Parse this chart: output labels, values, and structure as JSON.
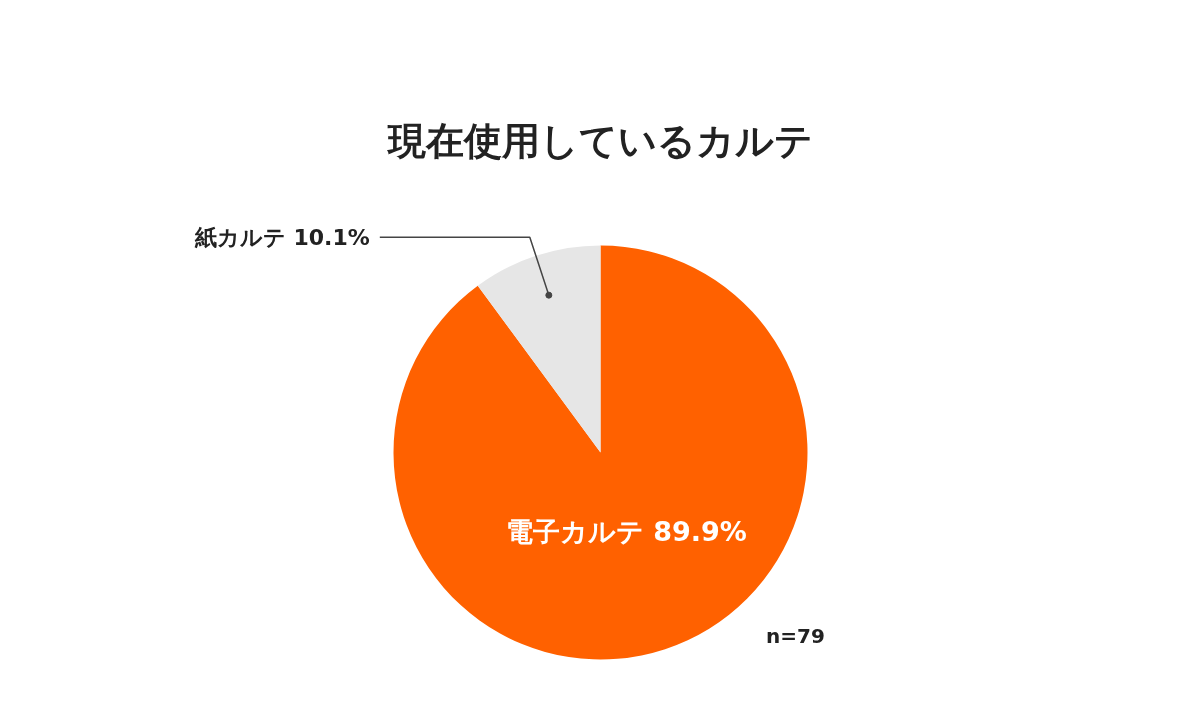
{
  "chart_data": {
    "type": "pie",
    "title": "現在使用しているカルテ",
    "categories": [
      "電子カルテ",
      "紙カルテ"
    ],
    "values": [
      89.9,
      10.1
    ],
    "value_labels": [
      "89.9%",
      "10.1%"
    ],
    "colors": [
      "#ff6100",
      "#e6e6e6"
    ],
    "data_labels": true,
    "annotations": [
      "n=79"
    ]
  }
}
